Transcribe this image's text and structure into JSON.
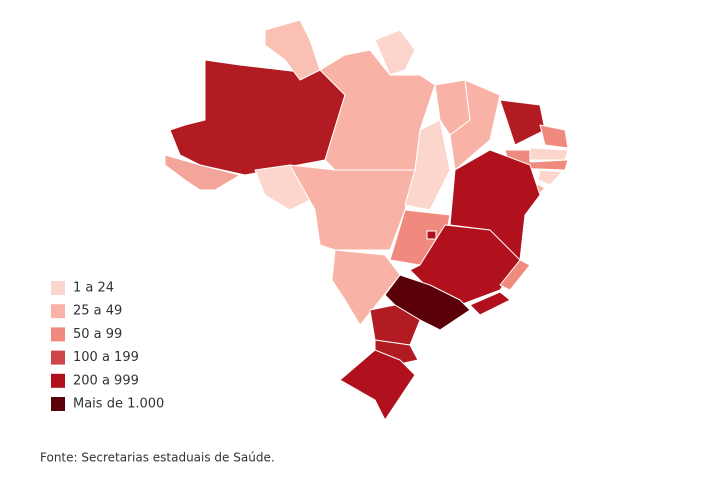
{
  "legend": {
    "items": [
      {
        "label": "1 a 24",
        "color": "#fcd6cc"
      },
      {
        "label": "25 a 49",
        "color": "#f9b3a6"
      },
      {
        "label": "50 a 99",
        "color": "#f08a7e"
      },
      {
        "label": "100 a 199",
        "color": "#d0454a"
      },
      {
        "label": "200 a 999",
        "color": "#b0111c"
      },
      {
        "label": "Mais de 1.000",
        "color": "#5a0008"
      }
    ]
  },
  "source": "Fonte: Secretarias estaduais de Saúde."
}
